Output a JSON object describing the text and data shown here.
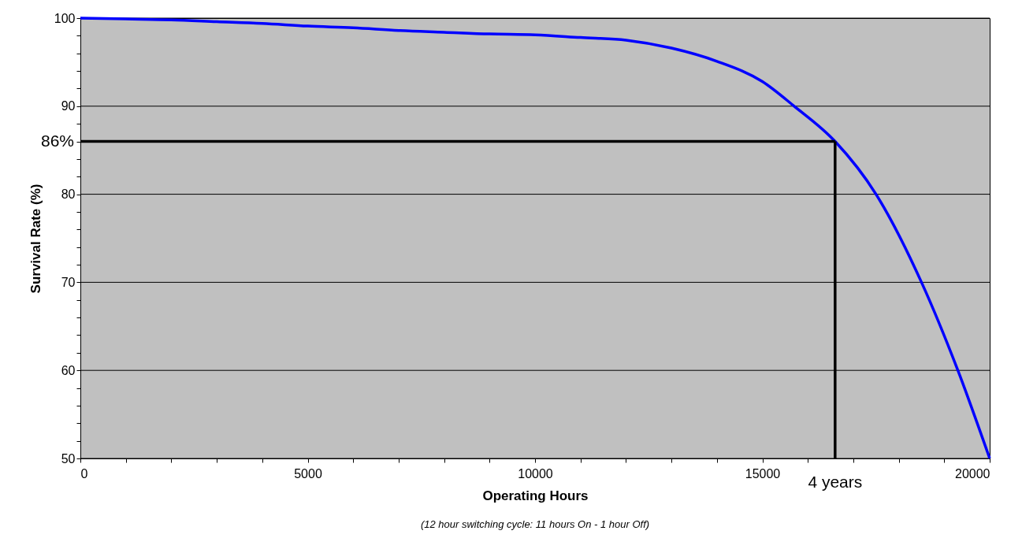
{
  "chart_data": {
    "type": "line",
    "xlabel": "Operating Hours",
    "ylabel": "Survival Rate (%)",
    "annotations": [
      "(12 hour switching cycle: 11 hours On - 1 hour Off)"
    ],
    "series": [
      {
        "color": "#0000ff",
        "x": [
          0,
          1000,
          2000,
          3000,
          4000,
          5000,
          6000,
          7000,
          8000,
          9000,
          10000,
          11000,
          12000,
          13000,
          14000,
          15000,
          15700,
          16600,
          17500,
          18500,
          19300,
          20000
        ],
        "values": [
          100,
          99.9,
          99.8,
          99.6,
          99.4,
          99.1,
          98.9,
          98.6,
          98.4,
          98.2,
          98.1,
          97.8,
          97.5,
          96.6,
          95.1,
          92.8,
          90,
          86,
          80,
          70,
          60,
          50
        ]
      }
    ],
    "xlim": [
      0,
      20000
    ],
    "ylim": [
      50,
      100
    ],
    "xticks": [
      0,
      {
        "value": 1000,
        "label": null
      },
      {
        "value": 2000,
        "label": null
      },
      {
        "value": 3000,
        "label": null
      },
      {
        "value": 4000,
        "label": null
      },
      5000,
      {
        "value": 6000,
        "label": null
      },
      {
        "value": 7000,
        "label": null
      },
      {
        "value": 8000,
        "label": null
      },
      {
        "value": 9000,
        "label": null
      },
      10000,
      {
        "value": 11000,
        "label": null
      },
      {
        "value": 12000,
        "label": null
      },
      {
        "value": 13000,
        "label": null
      },
      {
        "value": 14000,
        "label": null
      },
      15000,
      {
        "value": 16000,
        "label": null
      },
      {
        "value": 17000,
        "label": null
      },
      {
        "value": 18000,
        "label": null
      },
      {
        "value": 19000,
        "label": null
      },
      20000
    ],
    "yticks": [
      50,
      {
        "value": 52,
        "label": null
      },
      {
        "value": 54,
        "label": null
      },
      {
        "value": 56,
        "label": null
      },
      {
        "value": 58,
        "label": null
      },
      60,
      {
        "value": 62,
        "label": null
      },
      {
        "value": 64,
        "label": null
      },
      {
        "value": 66,
        "label": null
      },
      {
        "value": 68,
        "label": null
      },
      70,
      {
        "value": 72,
        "label": null
      },
      {
        "value": 74,
        "label": null
      },
      {
        "value": 76,
        "label": null
      },
      {
        "value": 78,
        "label": null
      },
      80,
      {
        "value": 82,
        "label": null
      },
      {
        "value": 84,
        "label": null
      },
      {
        "value": 86,
        "label": null
      },
      {
        "value": 88,
        "label": null
      },
      90,
      {
        "value": 92,
        "label": null
      },
      {
        "value": 94,
        "label": null
      },
      {
        "value": 96,
        "label": null
      },
      {
        "value": 98,
        "label": null
      },
      100
    ],
    "grid": "y",
    "ref_lines": [
      {
        "axis": "y",
        "value": 86,
        "label": "86%",
        "color": "#000000"
      },
      {
        "axis": "x",
        "value": 16600,
        "label": "4 years",
        "color": "#000000"
      }
    ]
  }
}
